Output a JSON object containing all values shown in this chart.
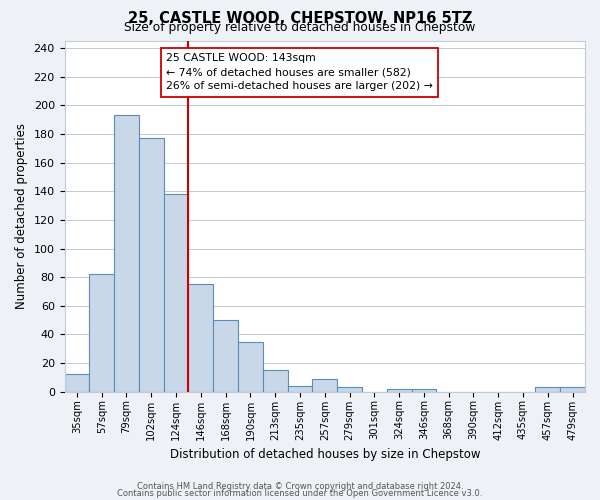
{
  "title": "25, CASTLE WOOD, CHEPSTOW, NP16 5TZ",
  "subtitle": "Size of property relative to detached houses in Chepstow",
  "xlabel": "Distribution of detached houses by size in Chepstow",
  "ylabel": "Number of detached properties",
  "bin_labels": [
    "35sqm",
    "57sqm",
    "79sqm",
    "102sqm",
    "124sqm",
    "146sqm",
    "168sqm",
    "190sqm",
    "213sqm",
    "235sqm",
    "257sqm",
    "279sqm",
    "301sqm",
    "324sqm",
    "346sqm",
    "368sqm",
    "390sqm",
    "412sqm",
    "435sqm",
    "457sqm",
    "479sqm"
  ],
  "bar_values": [
    12,
    82,
    193,
    177,
    138,
    75,
    50,
    35,
    15,
    4,
    9,
    3,
    0,
    2,
    2,
    0,
    0,
    0,
    0,
    3,
    3
  ],
  "bar_color": "#c8d8e8",
  "bar_edge_color": "#5b8db8",
  "vline_x": 5,
  "vline_color": "#cc0000",
  "annotation_text": "25 CASTLE WOOD: 143sqm\n← 74% of detached houses are smaller (582)\n26% of semi-detached houses are larger (202) →",
  "annotation_box_color": "#ffffff",
  "annotation_box_edge_color": "#cc0000",
  "ylim": [
    0,
    245
  ],
  "yticks": [
    0,
    20,
    40,
    60,
    80,
    100,
    120,
    140,
    160,
    180,
    200,
    220,
    240
  ],
  "footer_line1": "Contains HM Land Registry data © Crown copyright and database right 2024.",
  "footer_line2": "Contains public sector information licensed under the Open Government Licence v3.0.",
  "bg_color": "#eef2f7",
  "plot_bg_color": "#ffffff",
  "grid_color": "#c0ccd8"
}
